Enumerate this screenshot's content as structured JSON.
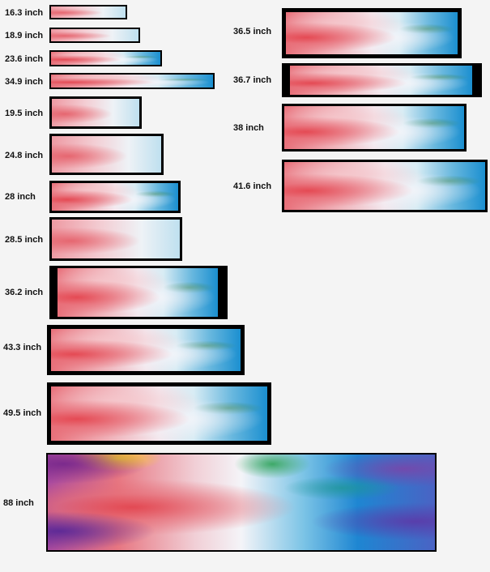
{
  "sizes": [
    {
      "label": "16.3 inch"
    },
    {
      "label": "18.9 inch"
    },
    {
      "label": "23.6 inch"
    },
    {
      "label": "34.9 inch"
    },
    {
      "label": "19.5 inch"
    },
    {
      "label": "24.8 inch"
    },
    {
      "label": "28 inch"
    },
    {
      "label": "28.5 inch"
    },
    {
      "label": "36.2 inch"
    },
    {
      "label": "43.3 inch"
    },
    {
      "label": "49.5 inch"
    },
    {
      "label": "88 inch"
    },
    {
      "label": "36.5 inch"
    },
    {
      "label": "36.7 inch"
    },
    {
      "label": "38 inch"
    },
    {
      "label": "41.6 inch"
    }
  ]
}
